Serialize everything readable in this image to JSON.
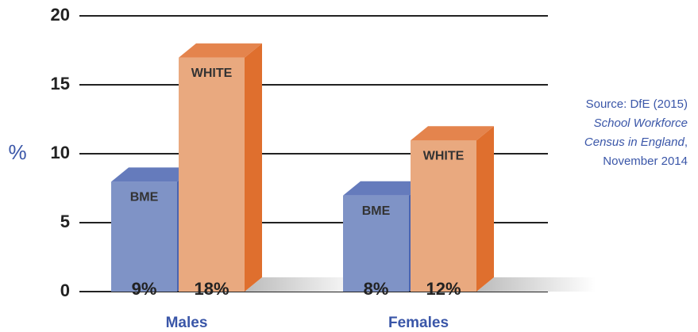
{
  "chart_data": {
    "type": "bar3d",
    "y_label": "%",
    "categories": [
      "Males",
      "Females"
    ],
    "series": [
      {
        "name": "BME",
        "color": "#7f93c6",
        "side_color": "#4a64b0",
        "values": [
          9,
          8
        ],
        "value_labels": [
          "9%",
          "8%"
        ]
      },
      {
        "name": "WHITE",
        "color": "#e9a97f",
        "side_color": "#df6f2e",
        "values": [
          18,
          12
        ],
        "value_labels": [
          "18%",
          "12%"
        ]
      }
    ],
    "ylim": [
      0,
      20
    ],
    "yticks": [
      0,
      5,
      10,
      15,
      20
    ],
    "grid": true,
    "source_lines": [
      [
        {
          "text": "Source: DfE (2015)",
          "italic": false
        }
      ],
      [
        {
          "text": "School Workforce",
          "italic": true
        }
      ],
      [
        {
          "text": "Census in England",
          "italic": true
        },
        {
          "text": ",",
          "italic": false
        }
      ],
      [
        {
          "text": "November 2014",
          "italic": false
        }
      ]
    ]
  }
}
